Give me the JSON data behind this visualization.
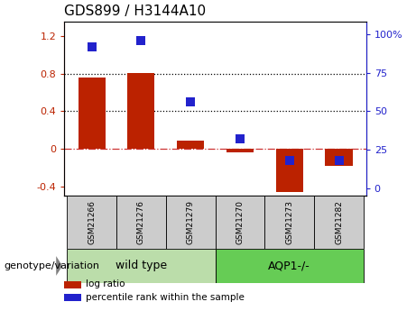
{
  "title": "GDS899 / H3144A10",
  "categories": [
    "GSM21266",
    "GSM21276",
    "GSM21279",
    "GSM21270",
    "GSM21273",
    "GSM21282"
  ],
  "log_ratio": [
    0.76,
    0.81,
    0.09,
    -0.04,
    -0.46,
    -0.18
  ],
  "percentile_rank": [
    92,
    96,
    56,
    32,
    18,
    18
  ],
  "ylim_left": [
    -0.5,
    1.35
  ],
  "ylim_right": [
    -5,
    108
  ],
  "yticks_left": [
    -0.4,
    0.0,
    0.4,
    0.8,
    1.2
  ],
  "ytick_labels_left": [
    "-0.4",
    "0",
    "0.4",
    "0.8",
    "1.2"
  ],
  "yticks_right": [
    0,
    25,
    50,
    75,
    100
  ],
  "ytick_labels_right": [
    "0",
    "25",
    "50",
    "75",
    "100%"
  ],
  "hlines_dotted": [
    0.4,
    0.8
  ],
  "zero_line_val": 0.0,
  "bar_color": "#bb2200",
  "dot_color": "#2222cc",
  "zero_line_color": "#cc3333",
  "group_labels": [
    "wild type",
    "AQP1-/-"
  ],
  "group_ranges": [
    [
      0,
      3
    ],
    [
      3,
      6
    ]
  ],
  "group_colors": [
    "#bbddaa",
    "#66cc55"
  ],
  "label_area_color": "#cccccc",
  "genotype_label": "genotype/variation",
  "legend_items": [
    {
      "label": "log ratio",
      "color": "#bb2200"
    },
    {
      "label": "percentile rank within the sample",
      "color": "#2222cc"
    }
  ],
  "bar_width": 0.55,
  "dot_size": 55,
  "title_fontsize": 11,
  "tick_fontsize": 8,
  "label_fontsize": 6.5,
  "group_fontsize": 9,
  "legend_fontsize": 7.5,
  "genotype_fontsize": 8
}
